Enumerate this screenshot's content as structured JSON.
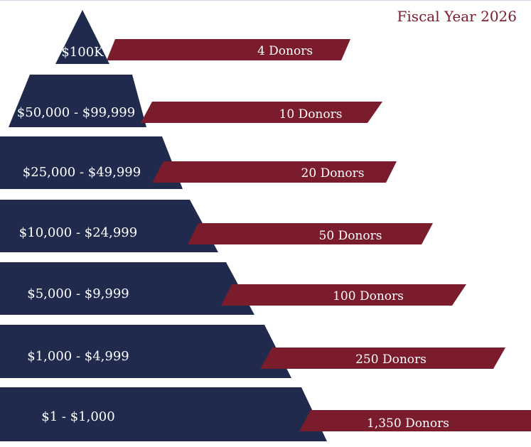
{
  "title": "Fiscal Year 2026",
  "colors": {
    "tier": "#1f2a4d",
    "band": "#7a1c2c",
    "text": "#ffffff",
    "title": "#7a1c2c"
  },
  "tiers": [
    {
      "range": "$100K",
      "donors": "4 Donors"
    },
    {
      "range": "$50,000 - $99,999",
      "donors": "10 Donors"
    },
    {
      "range": "$25,000 - $49,999",
      "donors": "20 Donors"
    },
    {
      "range": "$10,000 - $24,999",
      "donors": "50 Donors"
    },
    {
      "range": "$5,000 - $9,999",
      "donors": "100 Donors"
    },
    {
      "range": "$1,000 - $4,999",
      "donors": "250 Donors"
    },
    {
      "range": "$1 - $1,000",
      "donors": "1,350 Donors"
    }
  ]
}
